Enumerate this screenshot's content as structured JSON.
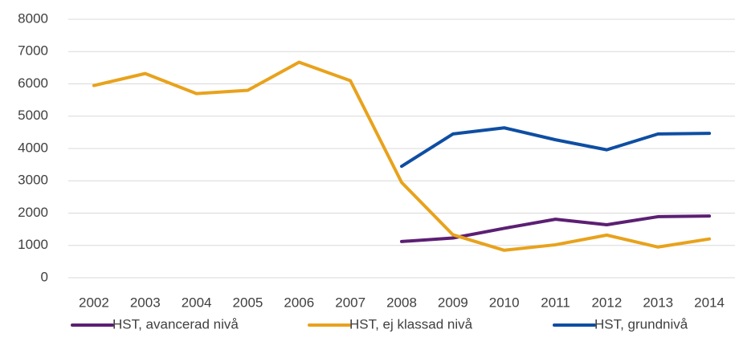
{
  "chart_data": {
    "type": "line",
    "categories": [
      "2002",
      "2003",
      "2004",
      "2005",
      "2006",
      "2007",
      "2008",
      "2009",
      "2010",
      "2011",
      "2012",
      "2013",
      "2014"
    ],
    "series": [
      {
        "name": "HST, avancerad nivå",
        "color": "#5c1f73",
        "values": [
          null,
          null,
          null,
          null,
          null,
          null,
          1120,
          1230,
          1530,
          1810,
          1640,
          1890,
          1910
        ]
      },
      {
        "name": "HST, ej klassad nivå",
        "color": "#e8a21c",
        "values": [
          5950,
          6320,
          5700,
          5800,
          6670,
          6100,
          2950,
          1330,
          850,
          1020,
          1320,
          950,
          1200
        ]
      },
      {
        "name": "HST, grundnivå",
        "color": "#0e4ea3",
        "values": [
          null,
          null,
          null,
          null,
          null,
          null,
          3450,
          4450,
          4640,
          4270,
          3960,
          4450,
          4470
        ]
      }
    ],
    "ylim": [
      0,
      8000
    ],
    "yticks": [
      0,
      1000,
      2000,
      3000,
      4000,
      5000,
      6000,
      7000,
      8000
    ],
    "grid": true,
    "legend": "bottom"
  }
}
